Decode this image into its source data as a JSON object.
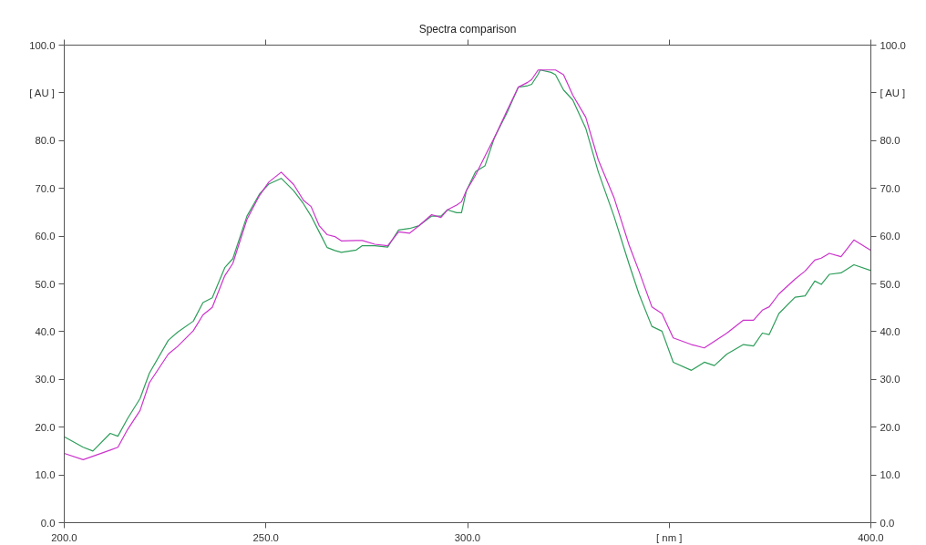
{
  "chart_data": {
    "type": "line",
    "title": "Spectra comparison",
    "xlim": [
      200,
      400
    ],
    "ylim": [
      0,
      100
    ],
    "y2lim": [
      0,
      100
    ],
    "xticks": [
      {
        "value": 200,
        "label": "200.0"
      },
      {
        "value": 250,
        "label": "250.0"
      },
      {
        "value": 300,
        "label": "300.0"
      },
      {
        "value": 350,
        "label": "[ nm ]"
      },
      {
        "value": 400,
        "label": "400.0"
      }
    ],
    "yticks": [
      {
        "value": 0,
        "label": "0.0"
      },
      {
        "value": 10,
        "label": "10.0"
      },
      {
        "value": 20,
        "label": "20.0"
      },
      {
        "value": 30,
        "label": "30.0"
      },
      {
        "value": 40,
        "label": "40.0"
      },
      {
        "value": 50,
        "label": "50.0"
      },
      {
        "value": 60,
        "label": "60.0"
      },
      {
        "value": 70,
        "label": "70.0"
      },
      {
        "value": 80,
        "label": "80.0"
      },
      {
        "value": 90,
        "label": "[ AU ]"
      },
      {
        "value": 100,
        "label": "100.0"
      }
    ],
    "y2ticks": [
      {
        "value": 0,
        "label": "0.0"
      },
      {
        "value": 10,
        "label": "10.0"
      },
      {
        "value": 20,
        "label": "20.0"
      },
      {
        "value": 30,
        "label": "30.0"
      },
      {
        "value": 40,
        "label": "40.0"
      },
      {
        "value": 50,
        "label": "50.0"
      },
      {
        "value": 60,
        "label": "60.0"
      },
      {
        "value": 70,
        "label": "70.0"
      },
      {
        "value": 80,
        "label": "80.0"
      },
      {
        "value": 90,
        "label": "[ AU ]"
      },
      {
        "value": 100,
        "label": "100.0"
      }
    ],
    "x": [
      200,
      204.7,
      207.1,
      211.4,
      213.3,
      215.7,
      218.8,
      221.1,
      225.8,
      228.1,
      232,
      234.4,
      236.7,
      239.8,
      241.8,
      245.3,
      248.4,
      250.7,
      253.8,
      256.9,
      259.3,
      261.2,
      263.2,
      265.2,
      267.1,
      268.7,
      272.4,
      273.9,
      277,
      280.2,
      282.9,
      285.6,
      288,
      291.1,
      293.4,
      295,
      297.3,
      298.5,
      299.7,
      302,
      304.3,
      306.7,
      309.8,
      312.6,
      314.9,
      315.9,
      317.5,
      318,
      320.7,
      321.8,
      323.8,
      326.1,
      329.3,
      332.4,
      336.3,
      340.1,
      342.5,
      345.7,
      348.2,
      351,
      355.5,
      358.7,
      361.2,
      364.3,
      368.4,
      370.9,
      373.1,
      374.8,
      377.2,
      381.2,
      383.7,
      386.1,
      387.7,
      389.7,
      392.6,
      395.8,
      400
    ],
    "series": [
      {
        "color": "#2e9e5b",
        "values": [
          18.0,
          15.8,
          15.0,
          18.7,
          18.1,
          21.8,
          26.0,
          31.3,
          38.2,
          39.9,
          42.2,
          46.1,
          47.1,
          53.4,
          55.3,
          64.2,
          68.8,
          70.9,
          72.1,
          69.5,
          66.8,
          64.2,
          60.9,
          57.6,
          57.0,
          56.6,
          57.1,
          58.0,
          58.0,
          57.7,
          61.3,
          61.6,
          62.2,
          64.2,
          64.2,
          65.5,
          64.9,
          64.9,
          69.5,
          73.5,
          74.7,
          80.7,
          85.9,
          91.2,
          91.5,
          91.8,
          93.9,
          94.8,
          94.3,
          93.8,
          90.6,
          88.5,
          82.6,
          73.5,
          64.2,
          54.0,
          47.9,
          41.1,
          40.1,
          33.6,
          31.9,
          33.6,
          32.9,
          35.3,
          37.3,
          37.0,
          39.7,
          39.4,
          43.8,
          47.2,
          47.5,
          50.6,
          49.9,
          52.0,
          52.3,
          54.0,
          52.8
        ]
      },
      {
        "color": "#cc33cc",
        "values": [
          14.5,
          13.2,
          13.9,
          15.2,
          15.8,
          19.5,
          23.5,
          29.3,
          35.3,
          36.9,
          40.2,
          43.5,
          45.1,
          51.7,
          54.3,
          63.5,
          68.5,
          71.3,
          73.4,
          70.8,
          67.5,
          66.2,
          62.2,
          60.3,
          59.9,
          59.0,
          59.1,
          59.1,
          58.3,
          58.0,
          60.9,
          60.6,
          62.2,
          64.5,
          63.9,
          65.5,
          66.5,
          67.2,
          69.5,
          72.8,
          76.7,
          80.7,
          86.3,
          91.2,
          92.2,
          92.8,
          94.8,
          94.8,
          94.8,
          94.8,
          93.8,
          89.5,
          84.9,
          76.0,
          68.1,
          58.0,
          52.7,
          45.2,
          43.8,
          38.7,
          37.3,
          36.6,
          38.0,
          39.7,
          42.4,
          42.4,
          44.5,
          45.2,
          47.9,
          51.0,
          52.7,
          55.0,
          55.4,
          56.4,
          55.7,
          59.2,
          57.0
        ]
      }
    ],
    "grid": false
  }
}
